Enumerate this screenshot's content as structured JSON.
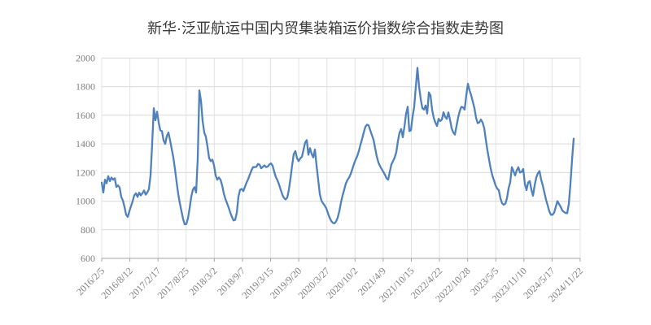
{
  "title": "新华·泛亚航运中国内贸集装箱运价指数综合指数走势图",
  "chart_data": {
    "type": "line",
    "title": "新华·泛亚航运中国内贸集装箱运价指数综合指数走势图",
    "xlabel": "",
    "ylabel": "",
    "ylim": [
      600,
      2000
    ],
    "y_ticks": [
      600,
      800,
      1000,
      1200,
      1400,
      1600,
      1800,
      2000
    ],
    "x_tick_labels": [
      "2016/2/5",
      "2016/8/12",
      "2017/2/17",
      "2017/8/25",
      "2018/3/2",
      "2018/9/7",
      "2019/3/15",
      "2019/9/20",
      "2020/3/27",
      "2020/10/2",
      "2021/4/9",
      "2021/10/15",
      "2022/4/22",
      "2022/10/28",
      "2023/5/5",
      "2023/11/10",
      "2024/5/17",
      "2024/11/22"
    ],
    "x_range": [
      "2016/2/5",
      "2024/11/22"
    ],
    "grid": "both",
    "legend": "none",
    "colors": {
      "line": "#4F81BD",
      "grid_h": "#D9D9D9",
      "grid_v": "#E4E4E4",
      "axis": "#A6A6A6",
      "tick_label": "#7F7F7F",
      "title": "#3A3A3A",
      "background": "#FFFFFF"
    },
    "series": [
      {
        "name": "综合指数",
        "sampling": "uniform points between x_range endpoints (approx. weekly index readings)",
        "values": [
          1130,
          1060,
          1150,
          1125,
          1175,
          1140,
          1165,
          1150,
          1160,
          1100,
          1110,
          1095,
          1030,
          1005,
          960,
          905,
          890,
          930,
          965,
          1000,
          1040,
          1055,
          1030,
          1060,
          1040,
          1055,
          1075,
          1045,
          1060,
          1085,
          1180,
          1400,
          1650,
          1565,
          1625,
          1550,
          1495,
          1490,
          1425,
          1400,
          1455,
          1480,
          1425,
          1365,
          1305,
          1225,
          1135,
          1050,
          985,
          930,
          875,
          838,
          840,
          880,
          950,
          1030,
          1080,
          1098,
          1060,
          1300,
          1774,
          1700,
          1560,
          1480,
          1450,
          1380,
          1300,
          1280,
          1290,
          1250,
          1180,
          1150,
          1165,
          1150,
          1110,
          1055,
          1015,
          985,
          955,
          920,
          890,
          865,
          870,
          920,
          1030,
          1080,
          1085,
          1070,
          1100,
          1130,
          1155,
          1185,
          1215,
          1238,
          1238,
          1240,
          1260,
          1255,
          1230,
          1240,
          1250,
          1238,
          1242,
          1256,
          1264,
          1248,
          1205,
          1168,
          1145,
          1115,
          1078,
          1045,
          1022,
          1012,
          1025,
          1080,
          1160,
          1250,
          1330,
          1350,
          1300,
          1280,
          1300,
          1310,
          1360,
          1410,
          1427,
          1324,
          1370,
          1330,
          1306,
          1361,
          1250,
          1150,
          1050,
          1003,
          985,
          970,
          950,
          915,
          885,
          862,
          848,
          845,
          858,
          885,
          930,
          990,
          1040,
          1080,
          1123,
          1148,
          1165,
          1190,
          1225,
          1260,
          1290,
          1315,
          1350,
          1395,
          1435,
          1480,
          1520,
          1535,
          1530,
          1495,
          1462,
          1430,
          1370,
          1313,
          1270,
          1245,
          1225,
          1205,
          1185,
          1160,
          1150,
          1205,
          1257,
          1280,
          1305,
          1342,
          1420,
          1480,
          1504,
          1447,
          1520,
          1610,
          1660,
          1490,
          1495,
          1590,
          1660,
          1800,
          1932,
          1800,
          1715,
          1650,
          1640,
          1669,
          1612,
          1760,
          1740,
          1640,
          1582,
          1550,
          1525,
          1575,
          1560,
          1570,
          1621,
          1590,
          1575,
          1620,
          1570,
          1510,
          1480,
          1465,
          1525,
          1585,
          1631,
          1660,
          1655,
          1640,
          1740,
          1820,
          1775,
          1740,
          1695,
          1650,
          1583,
          1545,
          1550,
          1570,
          1550,
          1512,
          1430,
          1355,
          1290,
          1228,
          1180,
          1145,
          1110,
          1088,
          1076,
          1020,
          985,
          975,
          982,
          1020,
          1090,
          1133,
          1237,
          1210,
          1180,
          1215,
          1237,
          1200,
          1205,
          1225,
          1120,
          1077,
          1130,
          1140,
          1080,
          1038,
          1110,
          1165,
          1195,
          1210,
          1150,
          1110,
          1060,
          1010,
          971,
          930,
          905,
          905,
          920,
          960,
          1000,
          980,
          960,
          935,
          925,
          917,
          916,
          980,
          1120,
          1290,
          1437
        ]
      }
    ]
  }
}
